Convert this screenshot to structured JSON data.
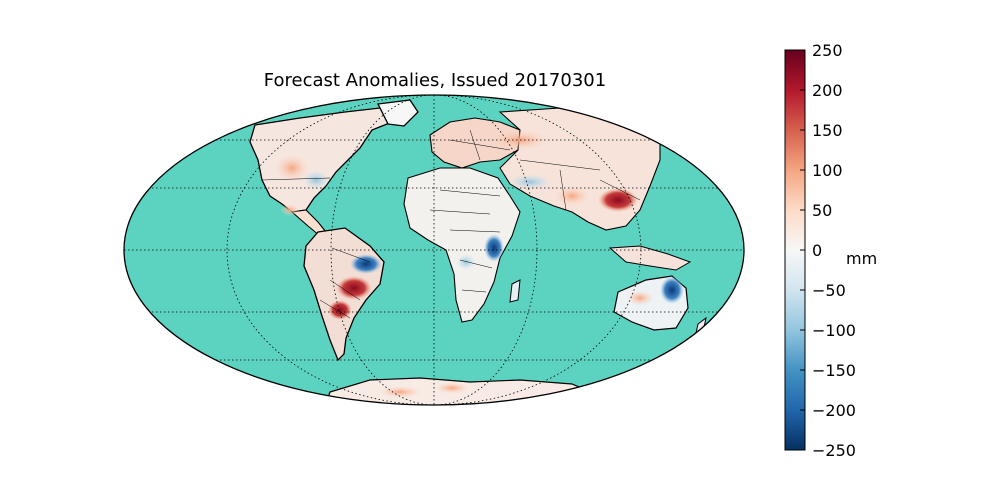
{
  "title": "Forecast Anomalies, Issued 20170301",
  "colorbar": {
    "unit_label": "mm",
    "ticks": [
      "250",
      "200",
      "150",
      "100",
      "50",
      "0",
      "−50",
      "−100",
      "−150",
      "−200",
      "−250"
    ],
    "range": [
      -250,
      250
    ],
    "colors": [
      "#67001f",
      "#b2182b",
      "#d6604d",
      "#f4a582",
      "#fddbc7",
      "#f7f7f7",
      "#d1e5f0",
      "#92c5de",
      "#4393c3",
      "#2166ac",
      "#053061"
    ]
  },
  "map": {
    "projection": "mollweide",
    "ocean_color": "#5cd3c0",
    "graticule": "dotted",
    "anomalies": [
      {
        "region": "eastern-brazil",
        "value": -250
      },
      {
        "region": "southern-brazil",
        "value": 250
      },
      {
        "region": "east-africa",
        "value": -220
      },
      {
        "region": "southeast-asia",
        "value": 200
      },
      {
        "region": "india-north",
        "value": 100
      },
      {
        "region": "north-america-west",
        "value": 80
      },
      {
        "region": "australia-east",
        "value": -120
      },
      {
        "region": "antarctica-coast",
        "value": 90
      }
    ]
  }
}
